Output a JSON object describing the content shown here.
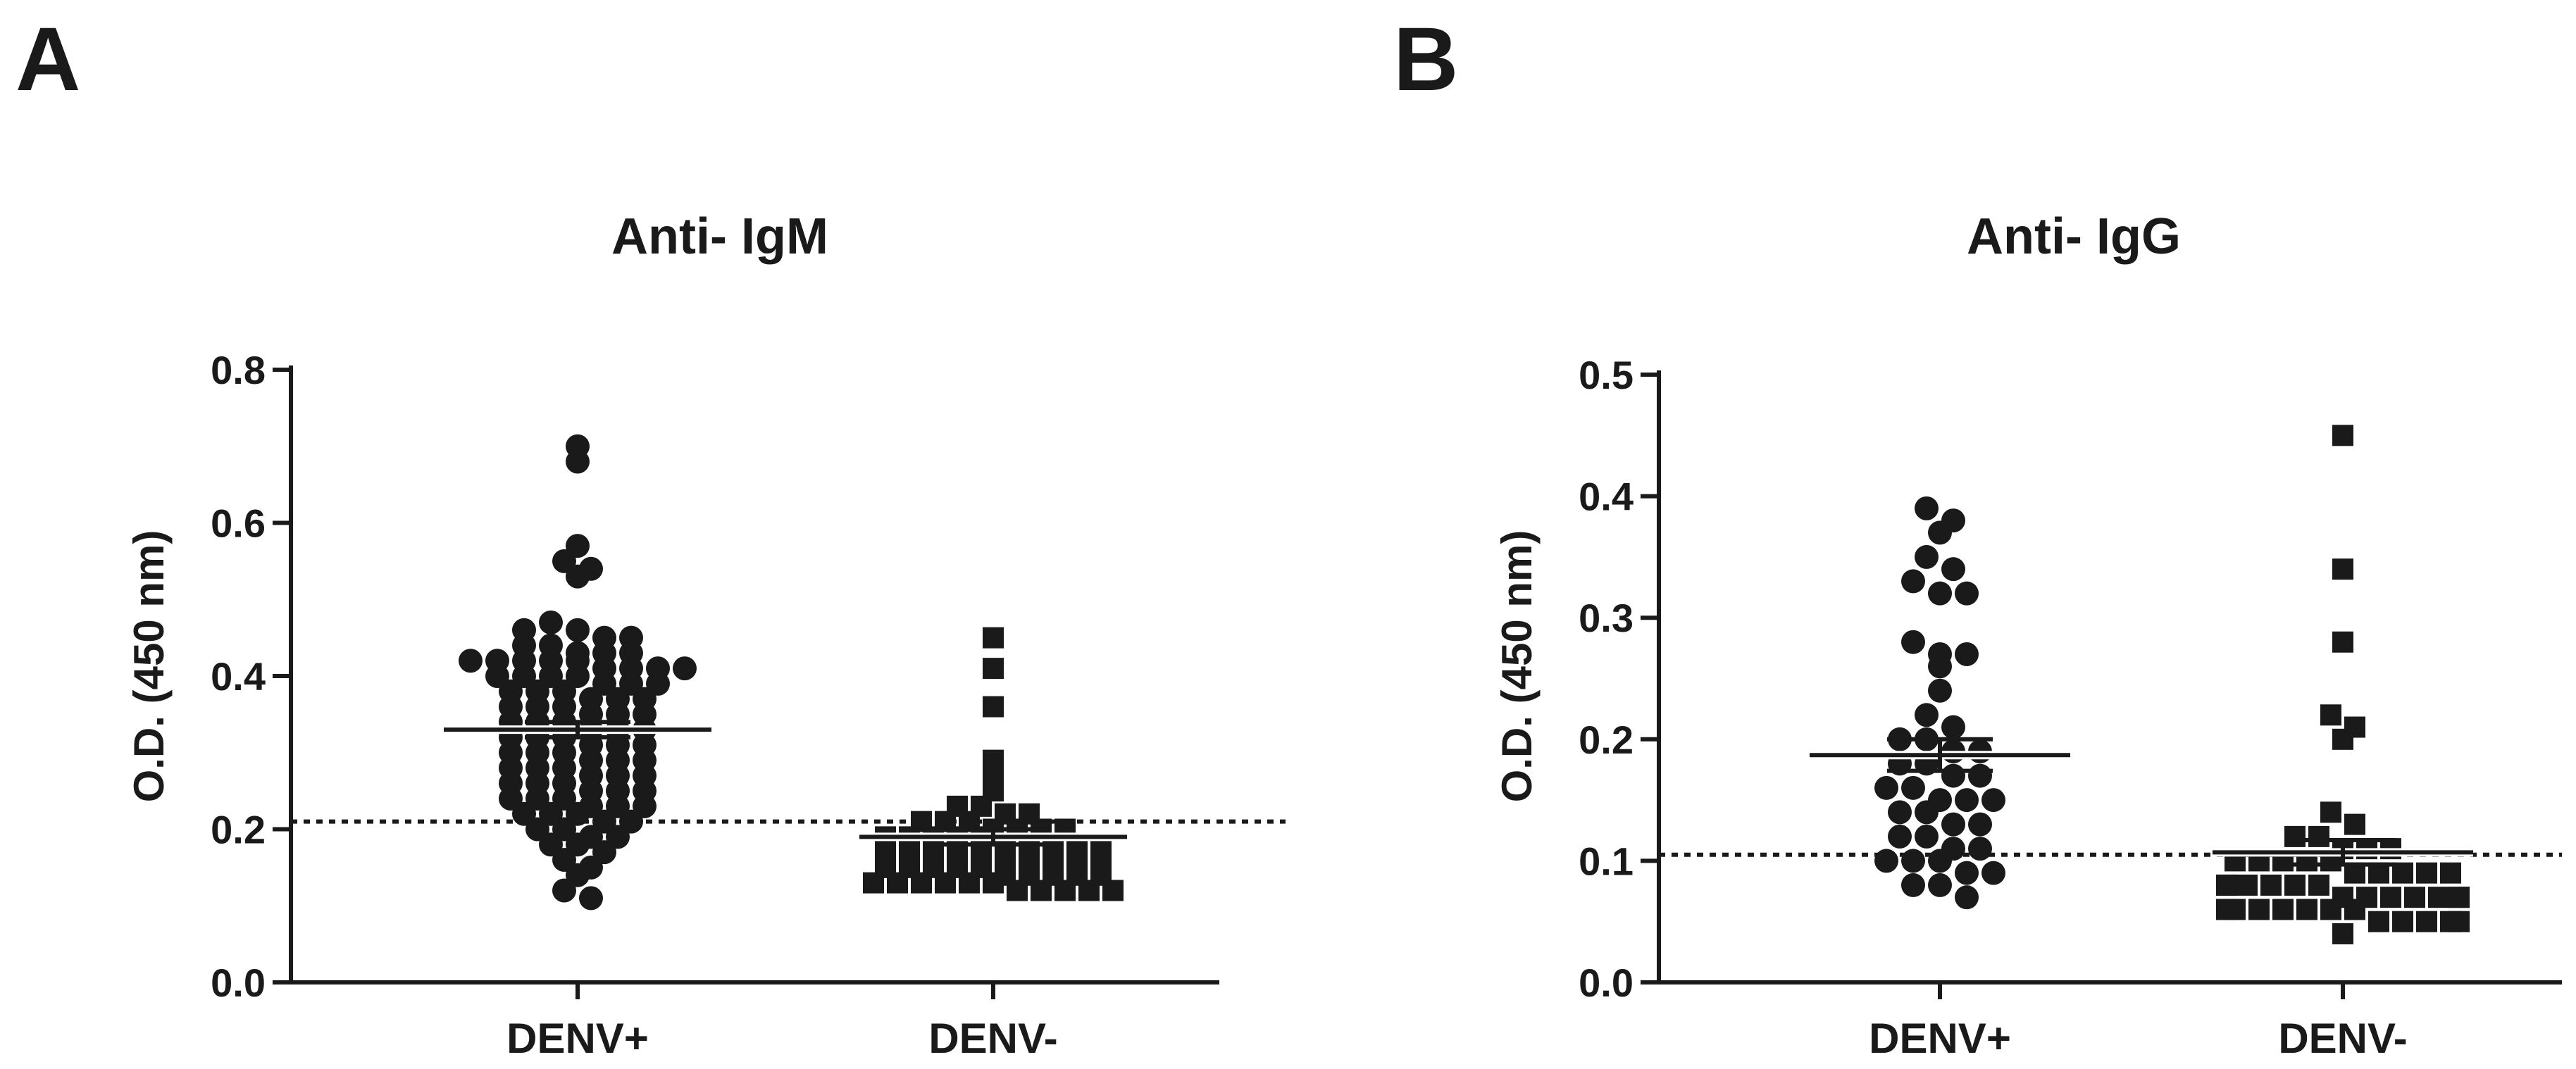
{
  "chart_data": [
    {
      "type": "scatter",
      "panel_label": "A",
      "title": "Anti- IgM",
      "ylabel": "O.D. (450 nm)",
      "xlabel": "",
      "categories": [
        "DENV+",
        "DENV-"
      ],
      "ylim": [
        0,
        0.8
      ],
      "yticks": [
        0.0,
        0.2,
        0.4,
        0.6,
        0.8
      ],
      "ytick_labels": [
        "0.0",
        "0.2",
        "0.4",
        "0.6",
        "0.8"
      ],
      "cutoff": 0.21,
      "series": [
        {
          "name": "DENV+",
          "marker": "circle",
          "mean": 0.33,
          "sem": 0.01,
          "values": [
            0.7,
            0.68,
            0.57,
            0.55,
            0.53,
            0.54,
            0.46,
            0.47,
            0.46,
            0.45,
            0.45,
            0.44,
            0.44,
            0.43,
            0.43,
            0.43,
            0.42,
            0.42,
            0.42,
            0.42,
            0.42,
            0.41,
            0.41,
            0.41,
            0.41,
            0.4,
            0.4,
            0.4,
            0.4,
            0.39,
            0.39,
            0.39,
            0.38,
            0.38,
            0.38,
            0.37,
            0.37,
            0.37,
            0.36,
            0.36,
            0.36,
            0.35,
            0.35,
            0.35,
            0.34,
            0.34,
            0.34,
            0.33,
            0.33,
            0.33,
            0.32,
            0.32,
            0.32,
            0.31,
            0.31,
            0.31,
            0.3,
            0.3,
            0.3,
            0.29,
            0.29,
            0.29,
            0.28,
            0.28,
            0.28,
            0.27,
            0.27,
            0.27,
            0.26,
            0.26,
            0.26,
            0.25,
            0.25,
            0.25,
            0.24,
            0.24,
            0.24,
            0.23,
            0.23,
            0.23,
            0.22,
            0.22,
            0.22,
            0.21,
            0.21,
            0.2,
            0.2,
            0.19,
            0.19,
            0.18,
            0.18,
            0.17,
            0.16,
            0.15,
            0.14,
            0.12,
            0.11
          ]
        },
        {
          "name": "DENV-",
          "marker": "square",
          "mean": 0.19,
          "sem": 0.01,
          "values": [
            0.45,
            0.41,
            0.36,
            0.29,
            0.27,
            0.25,
            0.23,
            0.23,
            0.22,
            0.22,
            0.21,
            0.21,
            0.21,
            0.2,
            0.2,
            0.2,
            0.2,
            0.19,
            0.19,
            0.19,
            0.19,
            0.19,
            0.18,
            0.18,
            0.18,
            0.18,
            0.18,
            0.17,
            0.17,
            0.17,
            0.17,
            0.17,
            0.16,
            0.16,
            0.16,
            0.16,
            0.16,
            0.15,
            0.15,
            0.15,
            0.15,
            0.15,
            0.14,
            0.14,
            0.14,
            0.14,
            0.14,
            0.13,
            0.13,
            0.13,
            0.13,
            0.13,
            0.13,
            0.12,
            0.12,
            0.12,
            0.12,
            0.12
          ]
        }
      ]
    },
    {
      "type": "scatter",
      "panel_label": "B",
      "title": "Anti- IgG",
      "ylabel": "O.D. (450 nm)",
      "xlabel": "",
      "categories": [
        "DENV+",
        "DENV-"
      ],
      "ylim": [
        0,
        0.5
      ],
      "yticks": [
        0.0,
        0.1,
        0.2,
        0.3,
        0.4,
        0.5
      ],
      "ytick_labels": [
        "0.0",
        "0.1",
        "0.2",
        "0.3",
        "0.4",
        "0.5"
      ],
      "cutoff": 0.105,
      "series": [
        {
          "name": "DENV+",
          "marker": "circle",
          "mean": 0.187,
          "sem": 0.013,
          "values": [
            0.39,
            0.38,
            0.37,
            0.35,
            0.34,
            0.33,
            0.32,
            0.32,
            0.28,
            0.27,
            0.27,
            0.26,
            0.24,
            0.22,
            0.21,
            0.2,
            0.2,
            0.19,
            0.19,
            0.18,
            0.18,
            0.17,
            0.17,
            0.16,
            0.16,
            0.15,
            0.15,
            0.15,
            0.14,
            0.14,
            0.13,
            0.13,
            0.12,
            0.12,
            0.11,
            0.11,
            0.1,
            0.1,
            0.1,
            0.09,
            0.09,
            0.08,
            0.08,
            0.07
          ]
        },
        {
          "name": "DENV-",
          "marker": "square",
          "mean": 0.107,
          "sem": 0.01,
          "values": [
            0.45,
            0.34,
            0.28,
            0.22,
            0.21,
            0.2,
            0.14,
            0.13,
            0.12,
            0.12,
            0.11,
            0.11,
            0.11,
            0.1,
            0.1,
            0.1,
            0.1,
            0.1,
            0.09,
            0.09,
            0.09,
            0.09,
            0.09,
            0.08,
            0.08,
            0.08,
            0.08,
            0.08,
            0.08,
            0.07,
            0.07,
            0.07,
            0.07,
            0.07,
            0.07,
            0.07,
            0.06,
            0.06,
            0.06,
            0.06,
            0.06,
            0.06,
            0.06,
            0.05,
            0.05,
            0.05,
            0.05,
            0.05,
            0.04
          ]
        }
      ]
    }
  ]
}
